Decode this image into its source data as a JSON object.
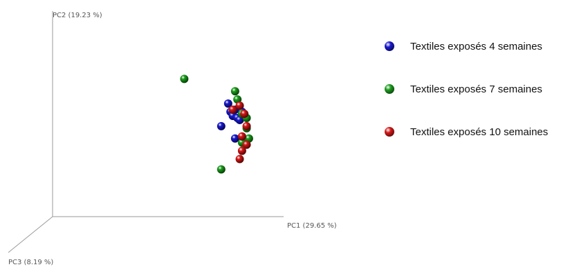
{
  "chart_data": {
    "type": "scatter",
    "title": "",
    "axes": {
      "pc1": "PC1 (29.65 %)",
      "pc2": "PC2 (19.23 %)",
      "pc3": "PC3 (8.19 %)"
    },
    "grid": false,
    "legend_position": "right",
    "series": [
      {
        "name": "Textiles exposés 4 semaines",
        "color": "#1a1ad0",
        "points": [
          [
            0.76,
            0.55
          ],
          [
            0.79,
            0.52
          ],
          [
            0.77,
            0.51
          ],
          [
            0.82,
            0.51
          ],
          [
            0.78,
            0.49
          ],
          [
            0.8,
            0.48
          ],
          [
            0.73,
            0.44
          ],
          [
            0.79,
            0.38
          ],
          [
            0.81,
            0.47
          ]
        ]
      },
      {
        "name": "Textiles exposés 7 semaines",
        "color": "#1e9e1e",
        "points": [
          [
            0.57,
            0.67
          ],
          [
            0.79,
            0.61
          ],
          [
            0.8,
            0.57
          ],
          [
            0.84,
            0.48
          ],
          [
            0.84,
            0.43
          ],
          [
            0.85,
            0.38
          ],
          [
            0.82,
            0.36
          ],
          [
            0.73,
            0.23
          ],
          [
            0.82,
            0.5
          ]
        ]
      },
      {
        "name": "Textiles exposés 10 semaines",
        "color": "#d81818",
        "points": [
          [
            0.81,
            0.54
          ],
          [
            0.78,
            0.52
          ],
          [
            0.83,
            0.5
          ],
          [
            0.84,
            0.44
          ],
          [
            0.82,
            0.39
          ],
          [
            0.84,
            0.35
          ],
          [
            0.82,
            0.32
          ],
          [
            0.81,
            0.28
          ]
        ]
      }
    ]
  }
}
